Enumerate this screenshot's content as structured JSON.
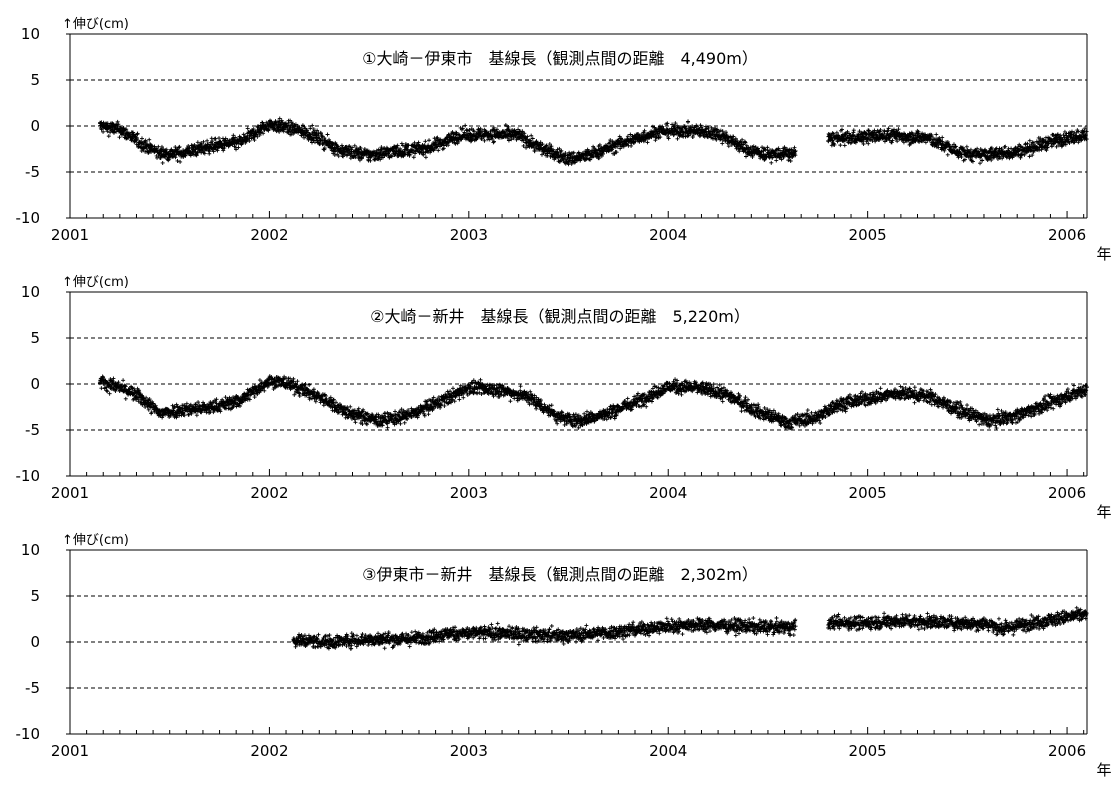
{
  "chart_data": [
    {
      "type": "scatter",
      "title": "①大崎－伊東市　基線長（観測点間の距離　4,490m）",
      "ylabel": "↑伸び(cm)",
      "xlabel": "年",
      "xlim": [
        2001.0,
        2006.1
      ],
      "ylim": [
        -10,
        10
      ],
      "x_ticks": [
        "2001",
        "2002",
        "2003",
        "2004",
        "2005",
        "2006"
      ],
      "y_ticks": [
        "10",
        "5",
        "0",
        "-5",
        "-10"
      ],
      "reference_lines": [
        5,
        0,
        -5
      ],
      "grid": false,
      "marker": "+",
      "series": [
        {
          "gaps": [
            [
              2004.64,
              2004.8
            ]
          ],
          "trend": [
            [
              2001.15,
              0.0
            ],
            [
              2001.25,
              -0.4
            ],
            [
              2001.35,
              -1.8
            ],
            [
              2001.45,
              -3.0
            ],
            [
              2001.55,
              -3.0
            ],
            [
              2001.7,
              -2.2
            ],
            [
              2001.85,
              -1.8
            ],
            [
              2002.0,
              0.2
            ],
            [
              2002.1,
              -0.2
            ],
            [
              2002.2,
              -0.8
            ],
            [
              2002.35,
              -2.6
            ],
            [
              2002.5,
              -3.2
            ],
            [
              2002.6,
              -2.8
            ],
            [
              2002.8,
              -2.4
            ],
            [
              2002.95,
              -1.0
            ],
            [
              2003.1,
              -0.9
            ],
            [
              2003.25,
              -1.0
            ],
            [
              2003.35,
              -2.3
            ],
            [
              2003.5,
              -3.6
            ],
            [
              2003.6,
              -3.2
            ],
            [
              2003.75,
              -2.0
            ],
            [
              2003.95,
              -0.6
            ],
            [
              2004.1,
              -0.5
            ],
            [
              2004.25,
              -0.8
            ],
            [
              2004.4,
              -2.6
            ],
            [
              2004.5,
              -3.1
            ],
            [
              2004.63,
              -3.0
            ],
            [
              2004.8,
              -1.4
            ],
            [
              2004.9,
              -1.3
            ],
            [
              2005.1,
              -1.0
            ],
            [
              2005.3,
              -1.3
            ],
            [
              2005.45,
              -2.8
            ],
            [
              2005.55,
              -3.2
            ],
            [
              2005.75,
              -2.8
            ],
            [
              2005.95,
              -1.5
            ],
            [
              2006.1,
              -0.9
            ]
          ]
        }
      ]
    },
    {
      "type": "scatter",
      "title": "②大崎－新井　基線長（観測点間の距離　5,220m）",
      "ylabel": "↑伸び(cm)",
      "xlabel": "年",
      "xlim": [
        2001.0,
        2006.1
      ],
      "ylim": [
        -10,
        10
      ],
      "x_ticks": [
        "2001",
        "2002",
        "2003",
        "2004",
        "2005",
        "2006"
      ],
      "y_ticks": [
        "10",
        "5",
        "0",
        "-5",
        "-10"
      ],
      "reference_lines": [
        5,
        0,
        -5
      ],
      "grid": false,
      "marker": "+",
      "series": [
        {
          "gaps": [],
          "trend": [
            [
              2001.15,
              0.3
            ],
            [
              2001.25,
              -0.4
            ],
            [
              2001.35,
              -1.4
            ],
            [
              2001.45,
              -3.2
            ],
            [
              2001.55,
              -2.8
            ],
            [
              2001.7,
              -2.6
            ],
            [
              2001.85,
              -1.8
            ],
            [
              2002.0,
              0.4
            ],
            [
              2002.1,
              0.0
            ],
            [
              2002.25,
              -1.4
            ],
            [
              2002.4,
              -3.2
            ],
            [
              2002.55,
              -4.0
            ],
            [
              2002.7,
              -3.4
            ],
            [
              2002.85,
              -2.0
            ],
            [
              2003.0,
              -0.4
            ],
            [
              2003.15,
              -0.6
            ],
            [
              2003.3,
              -1.4
            ],
            [
              2003.45,
              -3.6
            ],
            [
              2003.55,
              -4.0
            ],
            [
              2003.7,
              -3.2
            ],
            [
              2003.85,
              -1.8
            ],
            [
              2004.0,
              -0.3
            ],
            [
              2004.15,
              -0.4
            ],
            [
              2004.3,
              -1.2
            ],
            [
              2004.45,
              -3.0
            ],
            [
              2004.6,
              -4.2
            ],
            [
              2004.75,
              -3.6
            ],
            [
              2004.85,
              -2.2
            ],
            [
              2005.0,
              -1.6
            ],
            [
              2005.15,
              -1.0
            ],
            [
              2005.3,
              -1.3
            ],
            [
              2005.45,
              -2.8
            ],
            [
              2005.6,
              -4.0
            ],
            [
              2005.75,
              -3.4
            ],
            [
              2005.9,
              -2.2
            ],
            [
              2006.1,
              -0.5
            ]
          ]
        }
      ]
    },
    {
      "type": "scatter",
      "title": "③伊東市－新井　基線長（観測点間の距離　2,302m）",
      "ylabel": "↑伸び(cm)",
      "xlabel": "年",
      "xlim": [
        2001.0,
        2006.1
      ],
      "ylim": [
        -10,
        10
      ],
      "x_ticks": [
        "2001",
        "2002",
        "2003",
        "2004",
        "2005",
        "2006"
      ],
      "y_ticks": [
        "10",
        "5",
        "0",
        "-5",
        "-10"
      ],
      "reference_lines": [
        5,
        0,
        -5
      ],
      "grid": false,
      "marker": "+",
      "series": [
        {
          "gaps": [
            [
              2004.64,
              2004.8
            ]
          ],
          "trend": [
            [
              2002.12,
              0.2
            ],
            [
              2002.3,
              0.0
            ],
            [
              2002.5,
              0.3
            ],
            [
              2002.7,
              0.3
            ],
            [
              2002.9,
              0.9
            ],
            [
              2003.1,
              1.0
            ],
            [
              2003.3,
              0.8
            ],
            [
              2003.5,
              0.7
            ],
            [
              2003.7,
              1.0
            ],
            [
              2003.9,
              1.5
            ],
            [
              2004.1,
              1.9
            ],
            [
              2004.3,
              1.8
            ],
            [
              2004.5,
              1.6
            ],
            [
              2004.63,
              1.6
            ],
            [
              2004.8,
              2.1
            ],
            [
              2005.0,
              2.1
            ],
            [
              2005.2,
              2.3
            ],
            [
              2005.4,
              2.1
            ],
            [
              2005.6,
              2.0
            ],
            [
              2005.68,
              1.4
            ],
            [
              2005.8,
              2.0
            ],
            [
              2006.0,
              2.7
            ],
            [
              2006.1,
              3.0
            ]
          ]
        }
      ]
    }
  ]
}
